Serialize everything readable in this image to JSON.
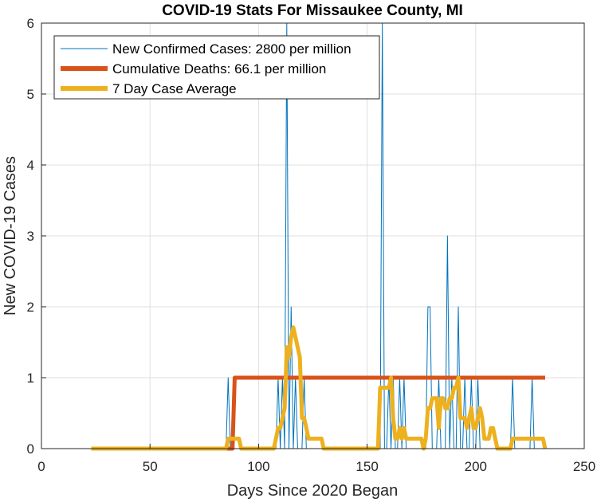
{
  "chart_data": {
    "type": "line",
    "title": "COVID-19 Stats For Missaukee County, MI",
    "xlabel": "Days Since 2020 Began",
    "ylabel": "New COVID-19 Cases",
    "xlim": [
      0,
      250
    ],
    "ylim": [
      0,
      6
    ],
    "xticks": [
      0,
      50,
      100,
      150,
      200,
      250
    ],
    "yticks": [
      0,
      1,
      2,
      3,
      4,
      5,
      6
    ],
    "grid": true,
    "legend_position": "top-left",
    "series": [
      {
        "name": "New Confirmed Cases: 2800 per million",
        "color": "#0072BD",
        "x": [
          23,
          85,
          86,
          87,
          88,
          108,
          109,
          110,
          111,
          112,
          113,
          114,
          115,
          116,
          117,
          118,
          119,
          120,
          121,
          122,
          123,
          156,
          157,
          158,
          159,
          160,
          161,
          162,
          163,
          164,
          165,
          166,
          167,
          168,
          169,
          177,
          178,
          179,
          180,
          181,
          182,
          183,
          184,
          185,
          186,
          187,
          188,
          189,
          190,
          191,
          192,
          193,
          194,
          195,
          196,
          197,
          198,
          199,
          200,
          201,
          202,
          203,
          216,
          217,
          218,
          225,
          226,
          227,
          232
        ],
        "y": [
          0,
          0,
          1,
          0,
          0,
          0,
          1,
          0,
          1,
          0,
          6,
          0,
          2,
          0,
          1,
          0,
          0,
          0,
          1,
          0,
          0,
          0,
          6,
          0,
          0,
          1,
          0,
          1,
          0,
          0,
          1,
          0,
          1,
          0,
          0,
          0,
          2,
          2,
          0,
          0,
          0,
          1,
          0,
          0,
          0,
          3,
          0,
          1,
          0,
          0,
          2,
          0,
          0,
          1,
          0,
          0,
          1,
          0,
          0,
          1,
          0,
          0,
          0,
          1,
          0,
          0,
          1,
          0,
          0
        ]
      },
      {
        "name": "Cumulative Deaths: 66.1 per million",
        "color": "#D95319",
        "x": [
          23,
          87,
          88,
          89,
          232
        ],
        "y": [
          0,
          0,
          0,
          1,
          1
        ]
      },
      {
        "name": "7 Day Case Average",
        "color": "#EDB120",
        "x": [
          23,
          85,
          86,
          88,
          89,
          90,
          91,
          92,
          107,
          108,
          109,
          110,
          111,
          112,
          113,
          114,
          115,
          116,
          117,
          118,
          119,
          120,
          121,
          122,
          123,
          124,
          129,
          130,
          155,
          156,
          157,
          158,
          159,
          160,
          161,
          162,
          163,
          164,
          165,
          166,
          167,
          168,
          169,
          170,
          175,
          176,
          177,
          178,
          179,
          180,
          181,
          182,
          183,
          184,
          185,
          186,
          187,
          188,
          189,
          190,
          191,
          192,
          193,
          194,
          195,
          196,
          197,
          198,
          199,
          200,
          201,
          202,
          203,
          204,
          205,
          206,
          207,
          208,
          209,
          210,
          215,
          216,
          217,
          218,
          219,
          220,
          230,
          231,
          232
        ],
        "y": [
          0,
          0,
          0.14,
          0.14,
          0.14,
          0.14,
          0.14,
          0,
          0,
          0.14,
          0.29,
          0.29,
          0.43,
          0.57,
          1.43,
          1.29,
          1.57,
          1.71,
          1.57,
          1.43,
          1.29,
          0.43,
          0.43,
          0.29,
          0.14,
          0.14,
          0.14,
          0,
          0,
          0.86,
          0.86,
          0.86,
          0.86,
          0.86,
          1.0,
          0.43,
          0.14,
          0.14,
          0.29,
          0.14,
          0.29,
          0.14,
          0.14,
          0.14,
          0.14,
          0,
          0.14,
          0.57,
          0.57,
          0.71,
          0.71,
          0.71,
          0.29,
          0.71,
          0.71,
          0.57,
          0.57,
          0.71,
          0.71,
          0.86,
          0.86,
          1.0,
          0.43,
          0.43,
          0.43,
          0.29,
          0.43,
          0.57,
          0.29,
          0.29,
          0.43,
          0.57,
          0.43,
          0.14,
          0.14,
          0.14,
          0.29,
          0.29,
          0.14,
          0,
          0,
          0,
          0.14,
          0.14,
          0.14,
          0.14,
          0.14,
          0.14,
          0
        ]
      }
    ]
  }
}
